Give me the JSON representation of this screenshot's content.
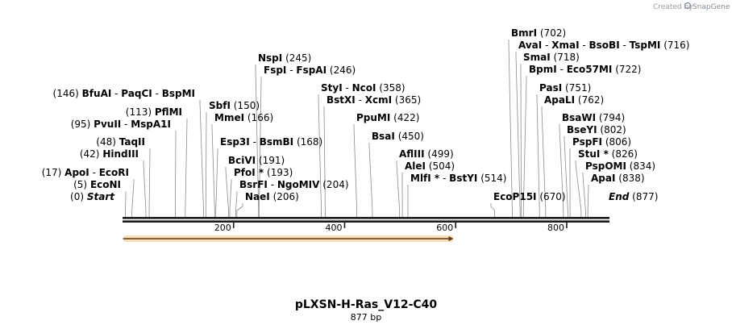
{
  "credit": {
    "prefix": "Created by",
    "brand": "SnapGene"
  },
  "title": "pLXSN-H-Ras_V12-C40",
  "length_label": "877 bp",
  "sequence_length": 877,
  "ticks": [
    {
      "value": 200,
      "label": "200"
    },
    {
      "value": 400,
      "label": "400"
    },
    {
      "value": 600,
      "label": "600"
    },
    {
      "value": 800,
      "label": "800"
    }
  ],
  "feature": {
    "start": 1,
    "end": 596,
    "color": "#f4a23a"
  },
  "labels": [
    {
      "id": "start",
      "parts": [
        {
          "t": "Start",
          "s": "it"
        }
      ],
      "pos_text": "(0)",
      "side": "left",
      "site": 0
    },
    {
      "id": "econi",
      "parts": [
        {
          "t": "EcoNI",
          "s": "nm"
        }
      ],
      "pos_text": "(5)",
      "side": "left",
      "site": 5
    },
    {
      "id": "apoi",
      "parts": [
        {
          "t": "ApoI",
          "s": "nm"
        },
        {
          "t": "  -  ",
          "s": "pos"
        },
        {
          "t": "EcoRI",
          "s": "nm"
        }
      ],
      "pos_text": "(17)",
      "side": "left",
      "site": 17
    },
    {
      "id": "hindiii",
      "parts": [
        {
          "t": "HindIII",
          "s": "nm"
        }
      ],
      "pos_text": "(42)",
      "side": "left",
      "site": 42
    },
    {
      "id": "taqii",
      "parts": [
        {
          "t": "TaqII",
          "s": "nm"
        }
      ],
      "pos_text": "(48)",
      "side": "left",
      "site": 48
    },
    {
      "id": "pvuii",
      "parts": [
        {
          "t": "PvuII",
          "s": "nm"
        },
        {
          "t": "  -  ",
          "s": "pos"
        },
        {
          "t": "MspA1I",
          "s": "nm"
        }
      ],
      "pos_text": "(95)",
      "side": "left",
      "site": 95
    },
    {
      "id": "pflmi",
      "parts": [
        {
          "t": "PflMI",
          "s": "nm"
        }
      ],
      "pos_text": "(113)",
      "side": "left",
      "site": 113
    },
    {
      "id": "bfuai",
      "parts": [
        {
          "t": "BfuAI",
          "s": "nm"
        },
        {
          "t": "  -  ",
          "s": "pos"
        },
        {
          "t": "PaqCI",
          "s": "nm"
        },
        {
          "t": "  -  ",
          "s": "pos"
        },
        {
          "t": "BspMI",
          "s": "nm"
        }
      ],
      "pos_text": "(146)",
      "side": "left",
      "site": 146
    },
    {
      "id": "sbfi",
      "parts": [
        {
          "t": "SbfI",
          "s": "nm"
        }
      ],
      "pos_text": "(150)",
      "side": "right",
      "site": 150
    },
    {
      "id": "mmei",
      "parts": [
        {
          "t": "MmeI",
          "s": "nm"
        }
      ],
      "pos_text": "(166)",
      "side": "right",
      "site": 166
    },
    {
      "id": "esp3i",
      "parts": [
        {
          "t": "Esp3I",
          "s": "nm"
        },
        {
          "t": "  -  ",
          "s": "pos"
        },
        {
          "t": "BsmBI",
          "s": "nm"
        }
      ],
      "pos_text": "(168)",
      "side": "right",
      "site": 168
    },
    {
      "id": "bcivi",
      "parts": [
        {
          "t": "BciVI",
          "s": "nm"
        }
      ],
      "pos_text": "(191)",
      "side": "right",
      "site": 191
    },
    {
      "id": "pfoi",
      "parts": [
        {
          "t": "PfoI *",
          "s": "nm"
        }
      ],
      "pos_text": "(193)",
      "side": "right",
      "site": 193
    },
    {
      "id": "bsrfi",
      "parts": [
        {
          "t": "BsrFI",
          "s": "nm"
        },
        {
          "t": "  -  ",
          "s": "pos"
        },
        {
          "t": "NgoMIV",
          "s": "nm"
        }
      ],
      "pos_text": "(204)",
      "side": "right",
      "site": 204
    },
    {
      "id": "naei",
      "parts": [
        {
          "t": "NaeI",
          "s": "nm"
        }
      ],
      "pos_text": "(206)",
      "side": "right",
      "site": 206
    },
    {
      "id": "nspi",
      "parts": [
        {
          "t": "NspI",
          "s": "nm"
        }
      ],
      "pos_text": "(245)",
      "side": "right",
      "site": 245
    },
    {
      "id": "fspi",
      "parts": [
        {
          "t": "FspI",
          "s": "nm"
        },
        {
          "t": "  -  ",
          "s": "pos"
        },
        {
          "t": "FspAI",
          "s": "nm"
        }
      ],
      "pos_text": "(246)",
      "side": "right",
      "site": 246
    },
    {
      "id": "styi",
      "parts": [
        {
          "t": "StyI",
          "s": "nm"
        },
        {
          "t": "  -  ",
          "s": "pos"
        },
        {
          "t": "NcoI",
          "s": "nm"
        }
      ],
      "pos_text": "(358)",
      "side": "right",
      "site": 358
    },
    {
      "id": "bstxi",
      "parts": [
        {
          "t": "BstXI",
          "s": "nm"
        },
        {
          "t": "  -  ",
          "s": "pos"
        },
        {
          "t": "XcmI",
          "s": "nm"
        }
      ],
      "pos_text": "(365)",
      "side": "right",
      "site": 365
    },
    {
      "id": "ppumi",
      "parts": [
        {
          "t": "PpuMI",
          "s": "nm"
        }
      ],
      "pos_text": "(422)",
      "side": "right",
      "site": 422
    },
    {
      "id": "bsai",
      "parts": [
        {
          "t": "BsaI",
          "s": "nm"
        }
      ],
      "pos_text": "(450)",
      "side": "right",
      "site": 450
    },
    {
      "id": "afliii",
      "parts": [
        {
          "t": "AflIII",
          "s": "nm"
        }
      ],
      "pos_text": "(499)",
      "side": "right",
      "site": 499
    },
    {
      "id": "alei",
      "parts": [
        {
          "t": "AleI",
          "s": "nm"
        }
      ],
      "pos_text": "(504)",
      "side": "right",
      "site": 504
    },
    {
      "id": "mlfi",
      "parts": [
        {
          "t": "MlfI *",
          "s": "nm"
        },
        {
          "t": "  -  ",
          "s": "pos"
        },
        {
          "t": "BstYI",
          "s": "nm"
        }
      ],
      "pos_text": "(514)",
      "side": "right",
      "site": 514
    },
    {
      "id": "ecop15i",
      "parts": [
        {
          "t": "EcoP15I",
          "s": "nm"
        }
      ],
      "pos_text": "(670)",
      "side": "right",
      "site": 670
    },
    {
      "id": "bmri",
      "parts": [
        {
          "t": "BmrI",
          "s": "nm"
        }
      ],
      "pos_text": "(702)",
      "side": "right",
      "site": 702
    },
    {
      "id": "avai",
      "parts": [
        {
          "t": "AvaI",
          "s": "nm"
        },
        {
          "t": "  -  ",
          "s": "pos"
        },
        {
          "t": "XmaI",
          "s": "nm"
        },
        {
          "t": "  -  ",
          "s": "pos"
        },
        {
          "t": "BsoBI",
          "s": "nm"
        },
        {
          "t": "  -  ",
          "s": "pos"
        },
        {
          "t": "TspMI",
          "s": "nm"
        }
      ],
      "pos_text": "(716)",
      "side": "right",
      "site": 716
    },
    {
      "id": "smai",
      "parts": [
        {
          "t": "SmaI",
          "s": "nm"
        }
      ],
      "pos_text": "(718)",
      "side": "right",
      "site": 718
    },
    {
      "id": "bpmi",
      "parts": [
        {
          "t": "BpmI",
          "s": "nm"
        },
        {
          "t": "  -  ",
          "s": "pos"
        },
        {
          "t": "Eco57MI",
          "s": "nm"
        }
      ],
      "pos_text": "(722)",
      "side": "right",
      "site": 722
    },
    {
      "id": "pasi",
      "parts": [
        {
          "t": "PasI",
          "s": "nm"
        }
      ],
      "pos_text": "(751)",
      "side": "right",
      "site": 751
    },
    {
      "id": "apali",
      "parts": [
        {
          "t": "ApaLI",
          "s": "nm"
        }
      ],
      "pos_text": "(762)",
      "side": "right",
      "site": 762
    },
    {
      "id": "bsawi",
      "parts": [
        {
          "t": "BsaWI",
          "s": "nm"
        }
      ],
      "pos_text": "(794)",
      "side": "right",
      "site": 794
    },
    {
      "id": "bseyi",
      "parts": [
        {
          "t": "BseYI",
          "s": "nm"
        }
      ],
      "pos_text": "(802)",
      "side": "right",
      "site": 802
    },
    {
      "id": "pspfi",
      "parts": [
        {
          "t": "PspFI",
          "s": "nm"
        }
      ],
      "pos_text": "(806)",
      "side": "right",
      "site": 806
    },
    {
      "id": "stui",
      "parts": [
        {
          "t": "StuI *",
          "s": "nm"
        }
      ],
      "pos_text": "(826)",
      "side": "right",
      "site": 826
    },
    {
      "id": "pspomi",
      "parts": [
        {
          "t": "PspOMI",
          "s": "nm"
        }
      ],
      "pos_text": "(834)",
      "side": "right",
      "site": 834
    },
    {
      "id": "apai",
      "parts": [
        {
          "t": "ApaI",
          "s": "nm"
        }
      ],
      "pos_text": "(838)",
      "side": "right",
      "site": 838
    },
    {
      "id": "end",
      "parts": [
        {
          "t": "End",
          "s": "it"
        }
      ],
      "pos_text": "(877)",
      "side": "right",
      "site": 877
    }
  ]
}
